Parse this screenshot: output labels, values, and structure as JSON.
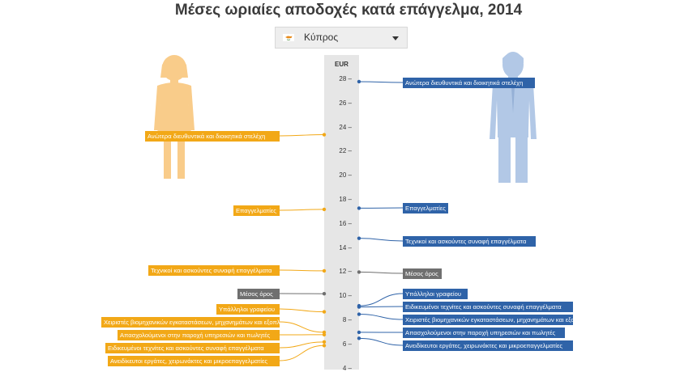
{
  "title": "Μέσες ωριαίες αποδοχές κατά επάγγελμα, 2014",
  "selector": {
    "value": "Κύπρος",
    "flag_icon": "cyprus-flag-icon",
    "caret_icon": "chevron-down-icon"
  },
  "colors": {
    "female": "#f2a817",
    "male": "#2f63a8",
    "average": "#6f6f6f",
    "axis_band": "#e6e6e6"
  },
  "chart_data": {
    "type": "dot-label",
    "title": "Μέσες ωριαίες αποδοχές κατά επάγγελμα, 2014",
    "unit": "EUR",
    "ylim": [
      4,
      28
    ],
    "ticks": [
      "28 –",
      "26 –",
      "24 –",
      "22 –",
      "20 –",
      "18 –",
      "16 –",
      "14 –",
      "12 –",
      "10 –",
      "8 –",
      "6 –",
      "4 –"
    ],
    "women": [
      {
        "label": "Ανώτερα διευθυντικά και διοικητικά στελέχη",
        "value": 23.4
      },
      {
        "label": "Επαγγελματίες",
        "value": 17.2
      },
      {
        "label": "Τεχνικοί και ασκούντες συναφή επαγγέλματα",
        "value": 12.1
      },
      {
        "label": "Μέσος όρος",
        "value": 10.2
      },
      {
        "label": "Υπάλληλοι γραφείου",
        "value": 8.7
      },
      {
        "label": "Χειριστές βιομηχανικών εγκαταστάσεων, μηχανημάτων και εξοπλισμού και συναρμολογητές",
        "value": 7.0
      },
      {
        "label": "Απασχολούμενοι στην παροχή υπηρεσιών και πωλητές",
        "value": 6.8
      },
      {
        "label": "Ειδικευμένοι τεχνίτες και ασκούντες συναφή επαγγέλματα",
        "value": 6.2
      },
      {
        "label": "Ανειδίκευτοι εργάτες, χειρωνάκτες και μικροεπαγγελματίες",
        "value": 5.9
      }
    ],
    "men": [
      {
        "label": "Ανώτερα διευθυντικά και διοικητικά στελέχη",
        "value": 27.8
      },
      {
        "label": "Επαγγελματίες",
        "value": 17.3
      },
      {
        "label": "Τεχνικοί και ασκούντες συναφή επαγγέλματα",
        "value": 14.8
      },
      {
        "label": "Μέσος όρος",
        "value": 12.0
      },
      {
        "label": "Υπάλληλοι γραφείου",
        "value": 9.2
      },
      {
        "label": "Ειδικευμένοι τεχνίτες και ασκούντες συναφή επαγγέλματα",
        "value": 9.1
      },
      {
        "label": "Χειριστές βιομηχανικών εγκαταστάσεων, μηχανημάτων και εξοπλισμού και συναρμολογητές",
        "value": 8.5
      },
      {
        "label": "Απασχολούμενοι στην παροχή υπηρεσιών και πωλητές",
        "value": 7.0
      },
      {
        "label": "Ανειδίκευτοι εργάτες, χειρωνάκτες και μικροεπαγγελματίες",
        "value": 6.5
      }
    ]
  }
}
